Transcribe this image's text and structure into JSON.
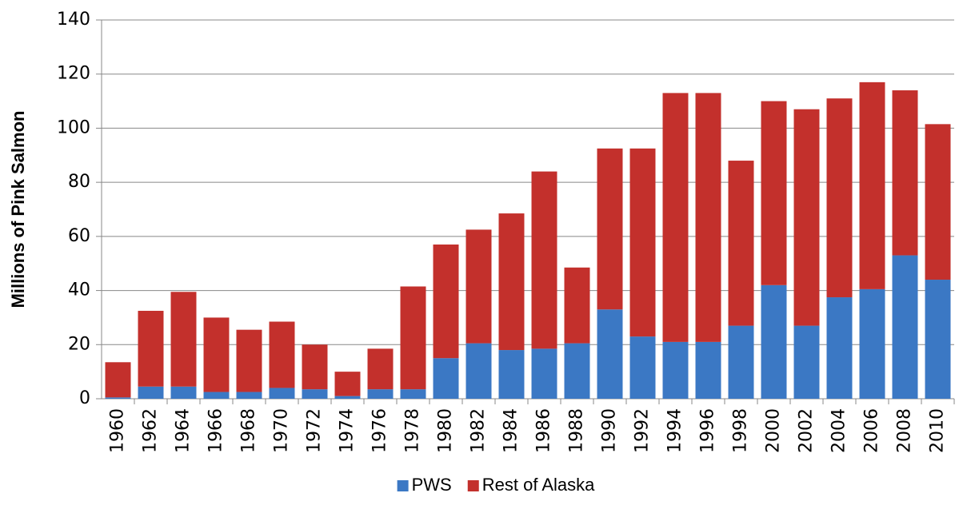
{
  "chart_data": {
    "type": "stacked_bar",
    "y_axis_label": "Millions of Pink Salmon",
    "categories": [
      "1960",
      "1962",
      "1964",
      "1966",
      "1968",
      "1970",
      "1972",
      "1974",
      "1976",
      "1978",
      "1980",
      "1982",
      "1984",
      "1986",
      "1988",
      "1990",
      "1992",
      "1994",
      "1996",
      "1998",
      "2000",
      "2002",
      "2004",
      "2006",
      "2008",
      "2010"
    ],
    "series": [
      {
        "name": "PWS",
        "color": "#3b78c4",
        "values": [
          0.5,
          4.5,
          4.5,
          2.5,
          2.5,
          4,
          3.5,
          1,
          3.5,
          3.5,
          15,
          20.5,
          18,
          18.5,
          20.5,
          33,
          23,
          21,
          21,
          27,
          42,
          27,
          37.5,
          40.5,
          53,
          44
        ]
      },
      {
        "name": "Rest of Alaska",
        "color": "#c3302c",
        "values": [
          13,
          28,
          35,
          27.5,
          23,
          24.5,
          16.5,
          9,
          15,
          38,
          42,
          42,
          50.5,
          65.5,
          28,
          59.5,
          69.5,
          92,
          92,
          61,
          68,
          80,
          73.5,
          76.5,
          61,
          57.5
        ]
      }
    ],
    "ylim": [
      0,
      140
    ],
    "yticks": [
      0,
      20,
      40,
      60,
      80,
      100,
      120,
      140
    ],
    "grid": true,
    "legend": "bottom"
  }
}
